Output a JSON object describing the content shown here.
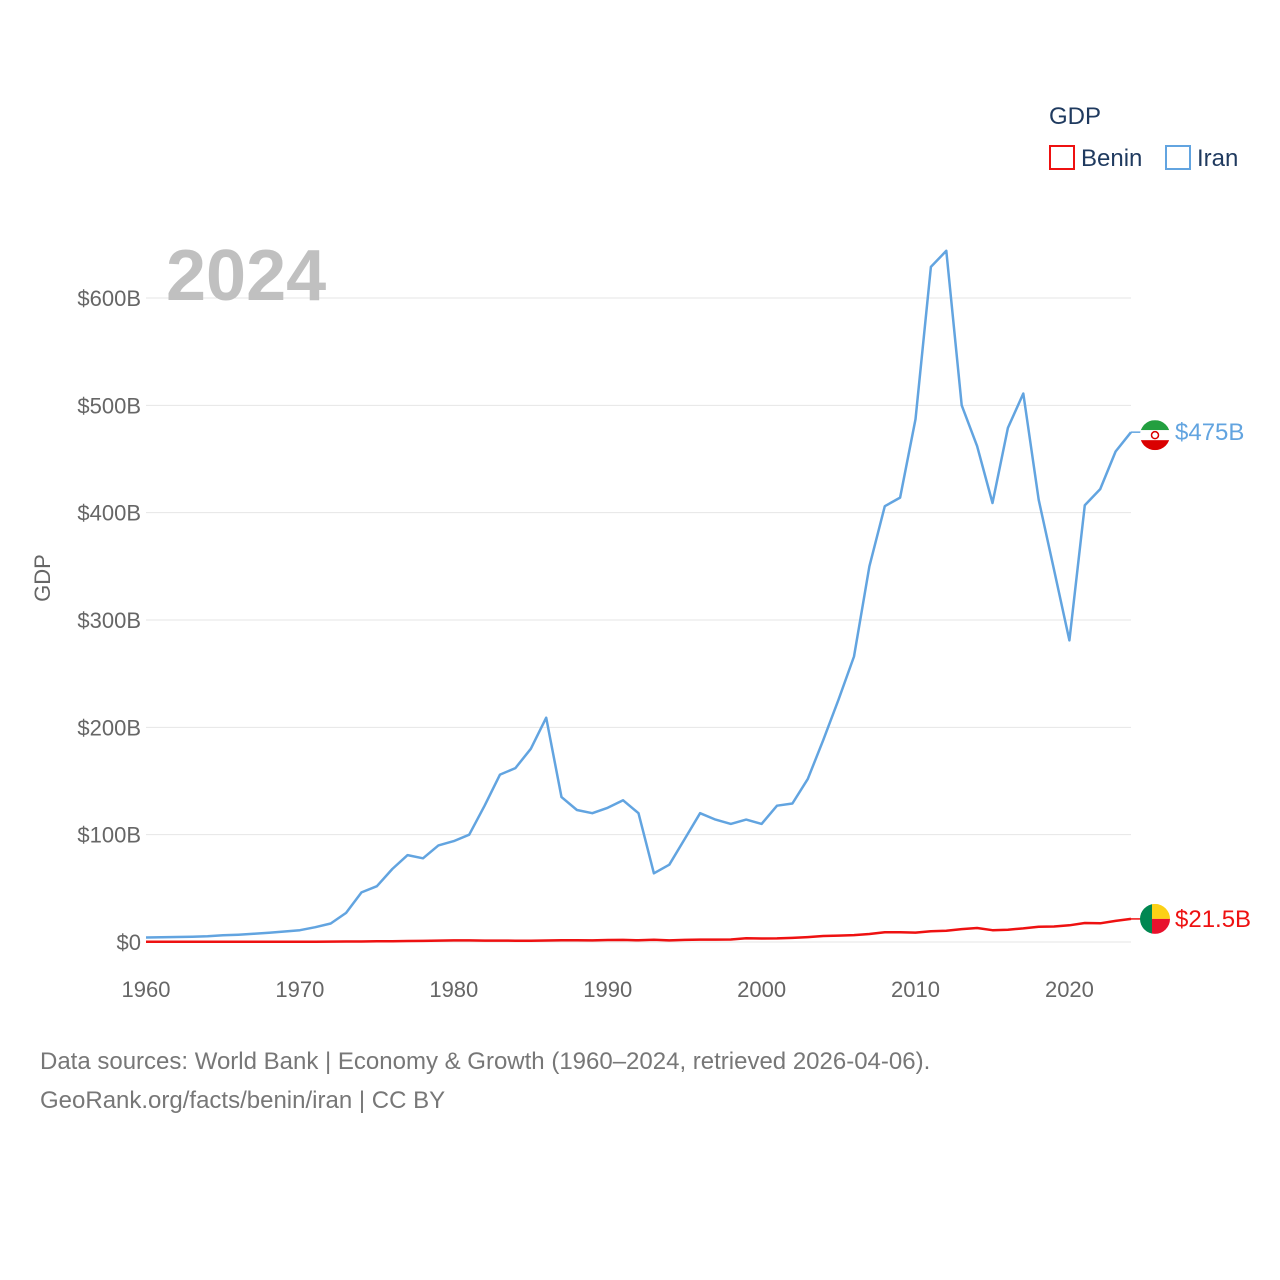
{
  "chart_data": {
    "type": "line",
    "title": "GDP",
    "year_label": "2024",
    "ylabel": "GDP",
    "xlabel": "",
    "xlim": [
      1960,
      2024
    ],
    "ylim": [
      0,
      600
    ],
    "y_unit": "billion USD",
    "x_ticks": [
      1960,
      1970,
      1980,
      1990,
      2000,
      2010,
      2020
    ],
    "x_tick_labels": [
      "1960",
      "1970",
      "1980",
      "1990",
      "2000",
      "2010",
      "2020"
    ],
    "y_ticks": [
      0,
      100,
      200,
      300,
      400,
      500,
      600
    ],
    "y_tick_labels": [
      "$0",
      "$100B",
      "$200B",
      "$300B",
      "$400B",
      "$500B",
      "$600B"
    ],
    "grid": true,
    "legend": {
      "title": "GDP",
      "position": "top-right",
      "entries": [
        "Benin",
        "Iran"
      ]
    },
    "series": [
      {
        "name": "Benin",
        "color": "#ee1111",
        "end_label": "$21.5B",
        "flag_colors": [
          "#008751",
          "#fcd116",
          "#e8112d"
        ],
        "x": [
          1960,
          1961,
          1962,
          1963,
          1964,
          1965,
          1966,
          1967,
          1968,
          1969,
          1970,
          1971,
          1972,
          1973,
          1974,
          1975,
          1976,
          1977,
          1978,
          1979,
          1980,
          1981,
          1982,
          1983,
          1984,
          1985,
          1986,
          1987,
          1988,
          1989,
          1990,
          1991,
          1992,
          1993,
          1994,
          1995,
          1996,
          1997,
          1998,
          1999,
          2000,
          2001,
          2002,
          2003,
          2004,
          2005,
          2006,
          2007,
          2008,
          2009,
          2010,
          2011,
          2012,
          2013,
          2014,
          2015,
          2016,
          2017,
          2018,
          2019,
          2020,
          2021,
          2022,
          2023,
          2024
        ],
        "values": [
          0.2,
          0.2,
          0.2,
          0.2,
          0.2,
          0.2,
          0.3,
          0.3,
          0.3,
          0.3,
          0.3,
          0.3,
          0.4,
          0.5,
          0.5,
          0.7,
          0.7,
          0.9,
          1.0,
          1.3,
          1.5,
          1.5,
          1.3,
          1.3,
          1.2,
          1.1,
          1.4,
          1.6,
          1.7,
          1.5,
          1.9,
          2.0,
          1.6,
          2.1,
          1.5,
          2.0,
          2.2,
          2.2,
          2.3,
          3.5,
          3.3,
          3.4,
          3.8,
          4.6,
          5.6,
          6.0,
          6.4,
          7.5,
          9.0,
          9.0,
          8.8,
          10.0,
          10.5,
          12.0,
          13.0,
          11.0,
          11.5,
          12.7,
          14.3,
          14.4,
          15.6,
          17.7,
          17.4,
          19.7,
          21.5
        ]
      },
      {
        "name": "Iran",
        "color": "#62a4e0",
        "end_label": "$475B",
        "flag_colors": [
          "#239f40",
          "#ffffff",
          "#da0000"
        ],
        "x": [
          1960,
          1961,
          1962,
          1963,
          1964,
          1965,
          1966,
          1967,
          1968,
          1969,
          1970,
          1971,
          1972,
          1973,
          1974,
          1975,
          1976,
          1977,
          1978,
          1979,
          1980,
          1981,
          1982,
          1983,
          1984,
          1985,
          1986,
          1987,
          1988,
          1989,
          1990,
          1991,
          1992,
          1993,
          1994,
          1995,
          1996,
          1997,
          1998,
          1999,
          2000,
          2001,
          2002,
          2003,
          2004,
          2005,
          2006,
          2007,
          2008,
          2009,
          2010,
          2011,
          2012,
          2013,
          2014,
          2015,
          2016,
          2017,
          2018,
          2019,
          2020,
          2021,
          2022,
          2023,
          2024
        ],
        "values": [
          4.2,
          4.4,
          4.7,
          4.9,
          5.3,
          6.2,
          6.8,
          7.6,
          8.6,
          9.8,
          11.0,
          13.8,
          17.2,
          27.1,
          46.2,
          52.0,
          68.0,
          81.0,
          78.0,
          90.0,
          94.0,
          100.0,
          127.0,
          156.0,
          162.0,
          180.0,
          209.0,
          135.0,
          123.0,
          120.0,
          125.0,
          132.0,
          120.0,
          64.0,
          72.0,
          96.0,
          120.0,
          114.0,
          110.0,
          114.0,
          110.0,
          127.0,
          129.0,
          152.0,
          188.0,
          226.0,
          266.0,
          350.0,
          406.0,
          414.0,
          487.0,
          629.0,
          644.0,
          500.0,
          462.0,
          409.0,
          479.0,
          511.0,
          412.0,
          347.0,
          281.0,
          407.0,
          422.0,
          457.0,
          475.0
        ]
      }
    ]
  },
  "footer": {
    "line1": "Data sources: World Bank | Economy & Growth (1960–2024, retrieved 2026-04-06).",
    "line2": "GeoRank.org/facts/benin/iran | CC BY"
  }
}
